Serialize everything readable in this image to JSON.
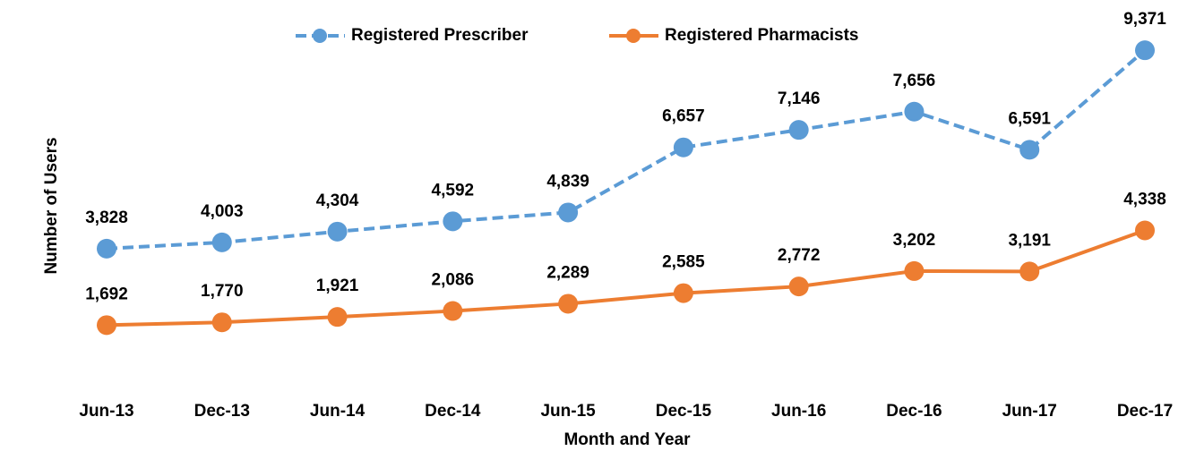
{
  "chart_data": {
    "type": "line",
    "x_label": "Month and Year",
    "y_label": "Number of Users",
    "categories": [
      "Jun-13",
      "Dec-13",
      "Jun-14",
      "Dec-14",
      "Jun-15",
      "Dec-15",
      "Jun-16",
      "Dec-16",
      "Jun-17",
      "Dec-17"
    ],
    "series": [
      {
        "name": "Registered Prescriber",
        "color": "#5b9bd5",
        "dashed": true,
        "values": [
          3828,
          4003,
          4304,
          4592,
          4839,
          6657,
          7146,
          7656,
          6591,
          9371
        ],
        "value_labels": [
          "3,828",
          "4,003",
          "4,304",
          "4,592",
          "4,839",
          "6,657",
          "7,146",
          "7,656",
          "6,591",
          "9,371"
        ]
      },
      {
        "name": "Registered Pharmacists",
        "color": "#ed7d31",
        "dashed": false,
        "values": [
          1692,
          1770,
          1921,
          2086,
          2289,
          2585,
          2772,
          3202,
          3191,
          4338
        ],
        "value_labels": [
          "1,692",
          "1,770",
          "1,921",
          "2,086",
          "2,289",
          "2,585",
          "2,772",
          "3,202",
          "3,191",
          "4,338"
        ]
      }
    ],
    "ylim": [
      0,
      10000
    ],
    "legend": "top"
  }
}
